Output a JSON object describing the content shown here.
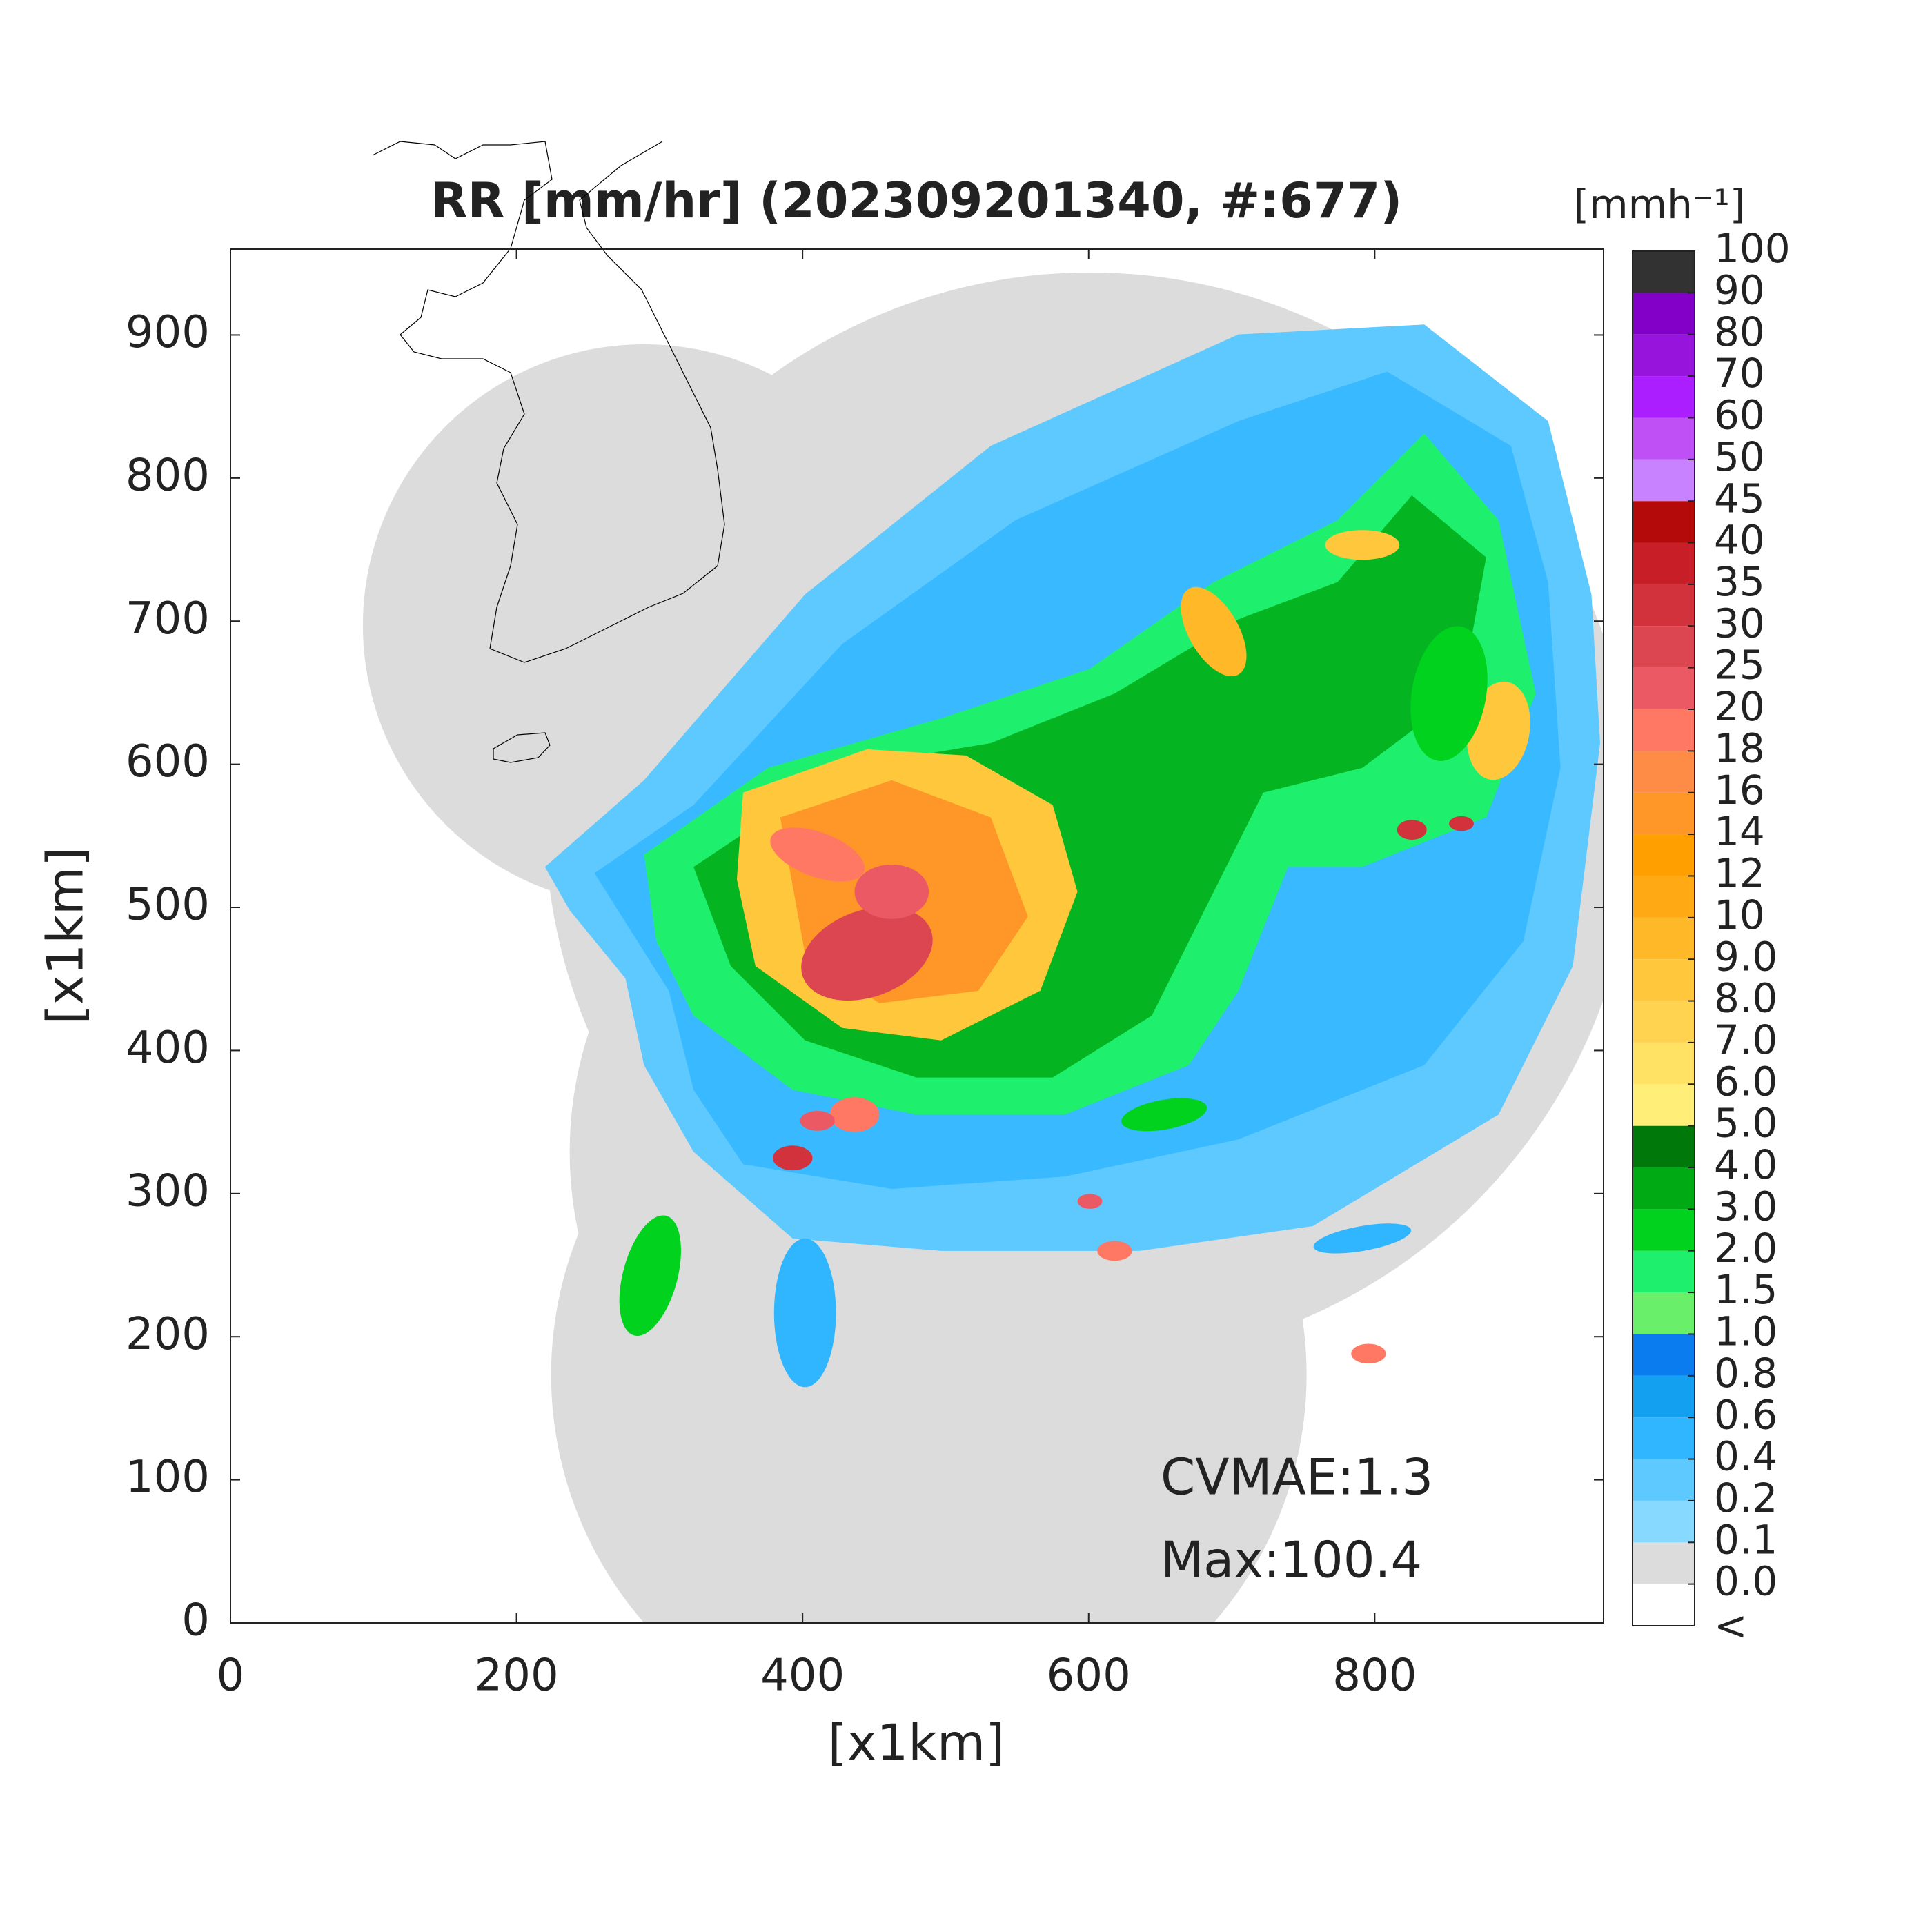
{
  "chart_data": {
    "type": "map",
    "title": "RR [mm/hr] (202309201340, #:677)",
    "xlabel": "[x1km]",
    "ylabel": "[x1km]",
    "xlim": [
      0,
      960
    ],
    "ylim": [
      0,
      960
    ],
    "xticks": [
      0,
      200,
      400,
      600,
      800
    ],
    "yticks": [
      0,
      100,
      200,
      300,
      400,
      500,
      600,
      700,
      800,
      900
    ],
    "annotations": [
      "CVMAE:1.3",
      "Max:100.4"
    ],
    "colorbar": {
      "label": "[mmh⁻¹]",
      "under_label": "<",
      "ticks": [
        {
          "value": 0,
          "label": "0.0"
        },
        0.1,
        0.2,
        0.4,
        0.6,
        0.8,
        {
          "value": 1,
          "label": "1.0"
        },
        1.5,
        {
          "value": 2,
          "label": "2.0"
        },
        {
          "value": 3,
          "label": "3.0"
        },
        {
          "value": 4,
          "label": "4.0"
        },
        {
          "value": 5,
          "label": "5.0"
        },
        {
          "value": 6,
          "label": "6.0"
        },
        {
          "value": 7,
          "label": "7.0"
        },
        {
          "value": 8,
          "label": "8.0"
        },
        {
          "value": 9,
          "label": "9.0"
        },
        10,
        12,
        14,
        16,
        18,
        20,
        25,
        30,
        35,
        40,
        45,
        50,
        60,
        70,
        80,
        90,
        100
      ],
      "colors": [
        "#ffffff",
        "#dcdcdc",
        "#87d9ff",
        "#5ec9ff",
        "#30b5ff",
        "#14a0f0",
        "#0a7cf0",
        "#6aef6a",
        "#1ef06e",
        "#00d21e",
        "#00aa14",
        "#00780a",
        "#ffef78",
        "#ffe164",
        "#ffd250",
        "#ffc83c",
        "#ffb928",
        "#ffaa14",
        "#ffa000",
        "#ff9628",
        "#ff8c46",
        "#ff7864",
        "#eb5a64",
        "#dc4650",
        "#d2323c",
        "#c81e28",
        "#b40a0a",
        "#c882ff",
        "#be50f5",
        "#aa1eff",
        "#9614dc",
        "#8200c8",
        "#323232"
      ]
    }
  }
}
